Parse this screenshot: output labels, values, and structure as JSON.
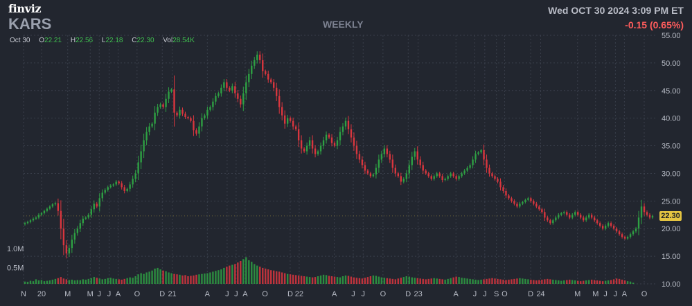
{
  "header": {
    "logo": "finviz",
    "ticker": "KARS",
    "interval": "WEEKLY",
    "datetime": "Wed OCT 30 2024 3:09 PM ET",
    "change": "-0.15 (0.65%)"
  },
  "ohlc": {
    "date": "Oct 30",
    "open_label": "O",
    "open": "22.21",
    "high_label": "H",
    "high": "22.56",
    "low_label": "L",
    "low": "22.18",
    "close_label": "C",
    "close": "22.30",
    "vol_label": "Vol",
    "vol": "28.54K"
  },
  "price_badge": "22.30",
  "colors": {
    "up": "#2ea043",
    "down": "#d9363e",
    "grid": "#3a3f4b",
    "badge": "#e4c441"
  },
  "chart_data": {
    "type": "candlestick",
    "price_axis": {
      "ticks": [
        "55.00",
        "50.00",
        "45.00",
        "40.00",
        "35.00",
        "30.00",
        "25.00",
        "20.00",
        "15.00",
        "10.00"
      ],
      "range": [
        10,
        55
      ]
    },
    "volume_axis": {
      "ticks": [
        "1.0M",
        "0.5M"
      ],
      "range": [
        0,
        1.0
      ]
    },
    "x_ticks": [
      "N",
      "20",
      "M",
      "M",
      "J",
      "J",
      "A",
      "O",
      "D",
      "21",
      "A",
      "J",
      "J",
      "A",
      "O",
      "D",
      "22",
      "A",
      "J",
      "J",
      "O",
      "D",
      "23",
      "A",
      "J",
      "J",
      "S",
      "O",
      "D",
      "24",
      "M",
      "M",
      "J",
      "J",
      "A",
      "O"
    ],
    "x_tick_pos": [
      0.0,
      2.0,
      4.9,
      7.4,
      8.4,
      9.5,
      10.5,
      12.6,
      15.4,
      16.5,
      20.4,
      22.6,
      23.6,
      24.6,
      26.8,
      29.6,
      30.6,
      34.5,
      36.6,
      37.7,
      39.9,
      42.7,
      43.8,
      48.0,
      50.1,
      51.2,
      52.5,
      53.4,
      56.3,
      57.4,
      61.5,
      63.5,
      64.6,
      65.7,
      66.7,
      68.9
    ],
    "closes": [
      21.0,
      21.2,
      21.5,
      21.8,
      22.0,
      22.5,
      22.8,
      23.2,
      23.6,
      24.0,
      24.4,
      24.6,
      23.2,
      20.0,
      17.0,
      15.5,
      16.5,
      18.0,
      19.2,
      20.0,
      21.0,
      21.8,
      22.0,
      22.5,
      23.5,
      24.5,
      24.0,
      25.5,
      26.5,
      27.0,
      27.5,
      27.8,
      28.0,
      28.5,
      28.2,
      27.5,
      26.8,
      27.2,
      28.0,
      29.0,
      30.0,
      32.0,
      34.0,
      36.0,
      37.5,
      38.5,
      39.0,
      41.0,
      42.0,
      42.5,
      42.0,
      43.5,
      44.8,
      45.2,
      41.0,
      40.5,
      41.5,
      40.8,
      40.2,
      40.0,
      39.5,
      37.8,
      37.2,
      38.5,
      40.0,
      40.5,
      41.5,
      42.0,
      43.0,
      44.0,
      44.5,
      45.5,
      46.5,
      45.5,
      45.0,
      45.8,
      44.5,
      43.5,
      42.5,
      44.5,
      46.5,
      48.0,
      49.5,
      50.5,
      51.5,
      50.5,
      48.5,
      48.0,
      47.0,
      46.5,
      45.5,
      44.0,
      42.0,
      40.5,
      39.0,
      40.0,
      39.5,
      38.5,
      38.0,
      36.0,
      34.5,
      34.0,
      35.0,
      36.0,
      34.5,
      33.5,
      34.0,
      35.0,
      36.0,
      37.0,
      36.5,
      35.5,
      35.0,
      36.0,
      37.5,
      38.5,
      39.5,
      38.0,
      36.5,
      35.0,
      33.5,
      32.5,
      31.5,
      30.5,
      30.0,
      29.5,
      29.8,
      31.0,
      32.5,
      33.5,
      34.5,
      33.5,
      32.5,
      31.0,
      30.0,
      29.5,
      28.5,
      29.0,
      30.0,
      31.5,
      33.0,
      34.0,
      32.5,
      31.5,
      30.5,
      30.0,
      29.5,
      29.0,
      29.5,
      30.0,
      29.5,
      28.8,
      29.0,
      29.5,
      30.0,
      29.5,
      29.0,
      29.5,
      30.0,
      30.5,
      31.0,
      31.5,
      32.5,
      33.5,
      33.8,
      34.2,
      32.5,
      31.0,
      30.0,
      29.5,
      29.0,
      28.5,
      27.5,
      26.8,
      26.0,
      25.5,
      25.0,
      24.5,
      24.0,
      24.5,
      24.8,
      25.2,
      25.5,
      25.0,
      24.5,
      24.0,
      23.5,
      23.0,
      22.0,
      21.5,
      21.0,
      21.5,
      22.0,
      22.5,
      22.8,
      23.0,
      22.5,
      22.0,
      22.5,
      23.0,
      22.5,
      22.0,
      21.5,
      22.0,
      22.5,
      22.0,
      21.5,
      21.0,
      20.5,
      20.0,
      20.5,
      21.0,
      20.5,
      20.0,
      19.5,
      19.0,
      18.5,
      18.2,
      18.5,
      19.0,
      19.5,
      20.0,
      22.0,
      24.0,
      23.0,
      22.5,
      22.0,
      22.3
    ],
    "volume_k": [
      60,
      55,
      80,
      70,
      120,
      90,
      100,
      70,
      80,
      90,
      110,
      130,
      150,
      180,
      140,
      120,
      100,
      110,
      90,
      100,
      95,
      120,
      110,
      130,
      150,
      180,
      160,
      140,
      120,
      130,
      150,
      160,
      140,
      130,
      120,
      110,
      130,
      150,
      170,
      160,
      200,
      250,
      280,
      260,
      300,
      320,
      350,
      400,
      420,
      380,
      350,
      330,
      300,
      280,
      260,
      250,
      240,
      220,
      230,
      200,
      210,
      220,
      240,
      250,
      260,
      270,
      280,
      300,
      320,
      340,
      360,
      380,
      420,
      450,
      480,
      500,
      520,
      560,
      600,
      650,
      700,
      620,
      580,
      520,
      480,
      450,
      420,
      400,
      380,
      360,
      350,
      330,
      320,
      300,
      280,
      260,
      250,
      240,
      230,
      220,
      210,
      200,
      190,
      180,
      170,
      180,
      200,
      220,
      240,
      230,
      210,
      200,
      190,
      180,
      170,
      200,
      220,
      210,
      190,
      170,
      160,
      150,
      140,
      160,
      180,
      200,
      220,
      210,
      190,
      170,
      160,
      150,
      140,
      130,
      120,
      140,
      160,
      180,
      200,
      190,
      170,
      160,
      150,
      140,
      130,
      120,
      130,
      140,
      150,
      140,
      130,
      120,
      110,
      130,
      150,
      170,
      190,
      180,
      160,
      150,
      140,
      130,
      120,
      110,
      100,
      110,
      120,
      130,
      140,
      150,
      140,
      130,
      120,
      110,
      100,
      110,
      120,
      130,
      140,
      150,
      140,
      130,
      120,
      110,
      100,
      90,
      100,
      110,
      120,
      130,
      120,
      110,
      100,
      90,
      80,
      90,
      100,
      110,
      100,
      90,
      80,
      70,
      80,
      90,
      100,
      110,
      100,
      90,
      80,
      70,
      80,
      90,
      100,
      120,
      140,
      130,
      110,
      90,
      70,
      60,
      30
    ]
  }
}
